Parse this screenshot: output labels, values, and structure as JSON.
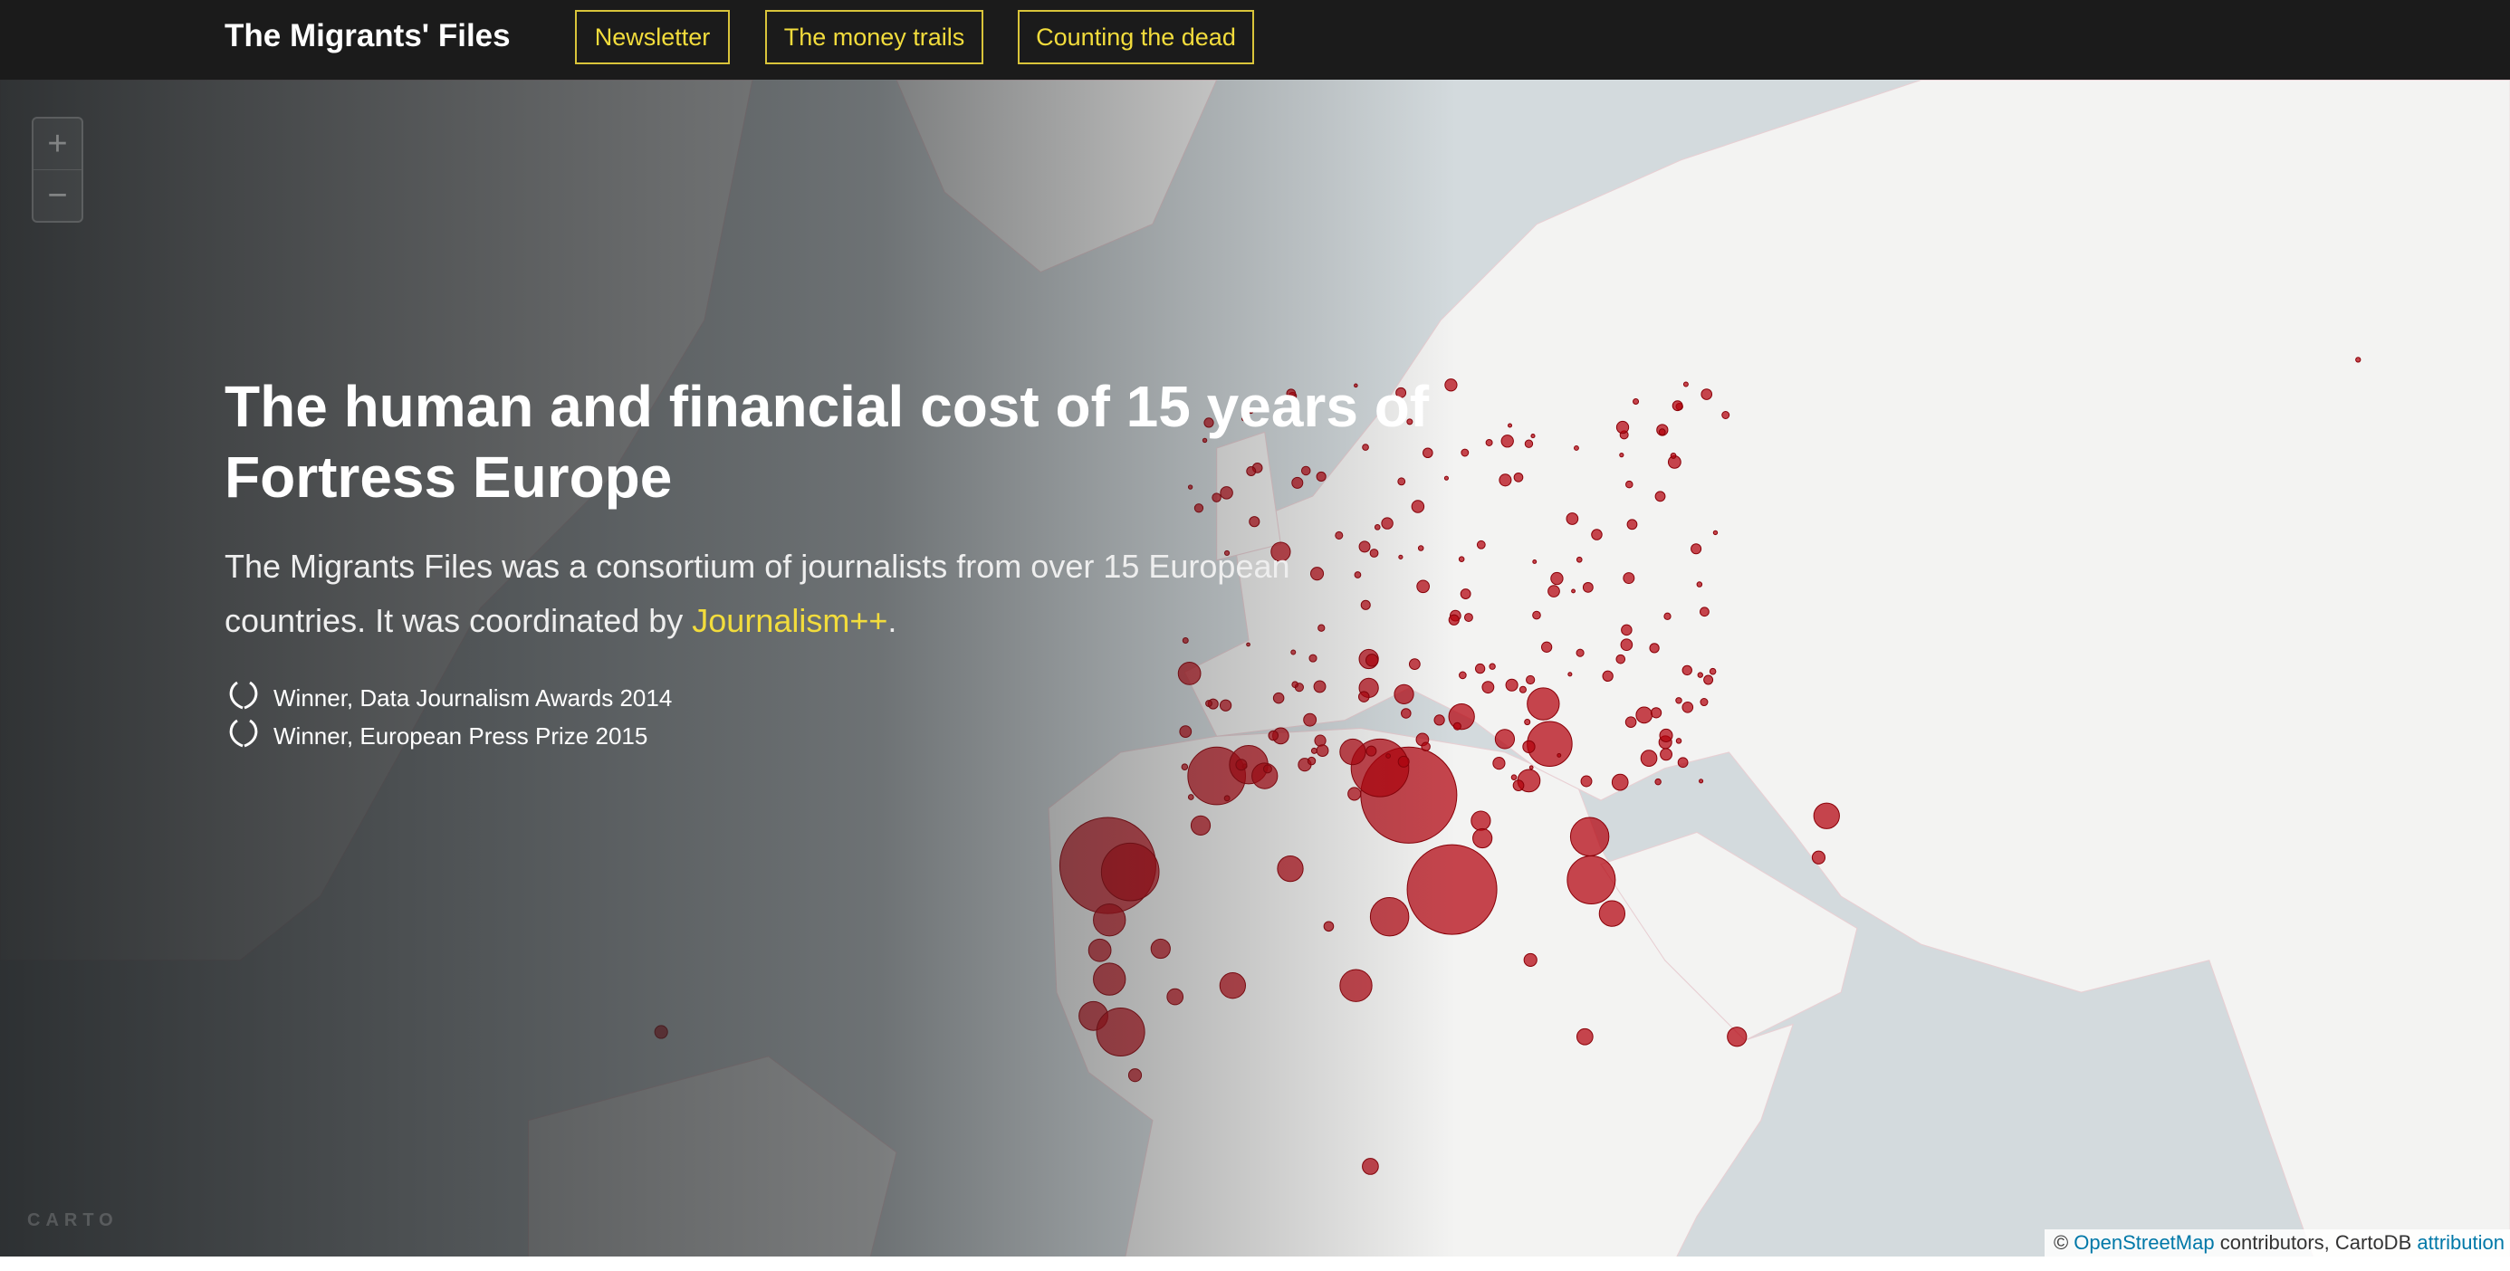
{
  "nav": {
    "brand": "The Migrants' Files",
    "links": [
      "Newsletter",
      "The money trails",
      "Counting the dead"
    ]
  },
  "hero": {
    "title": "The human and financial cost of 15 years of Fortress Europe",
    "subtitle_before": "The Migrants Files was a consortium of journalists from over 15 European countries. It was coordinated by ",
    "subtitle_link": "Journalism++",
    "subtitle_after": ".",
    "awards": [
      "Winner, Data Journalism Awards 2014",
      "Winner, European Press Prize 2015"
    ]
  },
  "map": {
    "zoom_in": "+",
    "zoom_out": "−",
    "logo": "CARTO",
    "attribution": {
      "copyright": "©",
      "osm": "OpenStreetMap",
      "middle": "contributors, CartoDB",
      "link": "attribution"
    }
  }
}
